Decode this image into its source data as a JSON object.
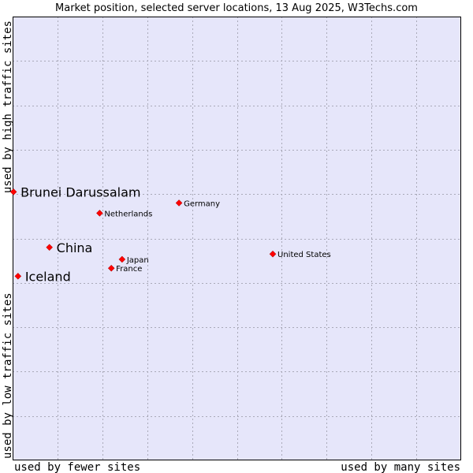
{
  "chart_data": {
    "type": "scatter",
    "title": "Market position, selected server locations, 13 Aug 2025, W3Techs.com",
    "xlabel_left": "used by fewer sites",
    "xlabel_right": "used by many sites",
    "ylabel_bottom": "used by low traffic sites",
    "ylabel_top": "used by high traffic sites",
    "xlim": [
      0,
      10
    ],
    "ylim": [
      0,
      10
    ],
    "grid": true,
    "colors": {
      "plot_background": "#e6e6fa",
      "grid": "#a9a9b8",
      "point": "#ff0000",
      "point_outline": "#990000"
    },
    "points": [
      {
        "label": "Brunei Darussalam",
        "x": 0.02,
        "y": 6.05,
        "size": "large"
      },
      {
        "label": "Germany",
        "x": 3.71,
        "y": 5.8,
        "size": "small"
      },
      {
        "label": "Netherlands",
        "x": 1.94,
        "y": 5.57,
        "size": "small"
      },
      {
        "label": "China",
        "x": 0.82,
        "y": 4.8,
        "size": "large"
      },
      {
        "label": "United States",
        "x": 5.8,
        "y": 4.65,
        "size": "small"
      },
      {
        "label": "Japan",
        "x": 2.44,
        "y": 4.53,
        "size": "small"
      },
      {
        "label": "France",
        "x": 2.2,
        "y": 4.33,
        "size": "small"
      },
      {
        "label": "Iceland",
        "x": 0.12,
        "y": 4.15,
        "size": "large"
      }
    ]
  }
}
